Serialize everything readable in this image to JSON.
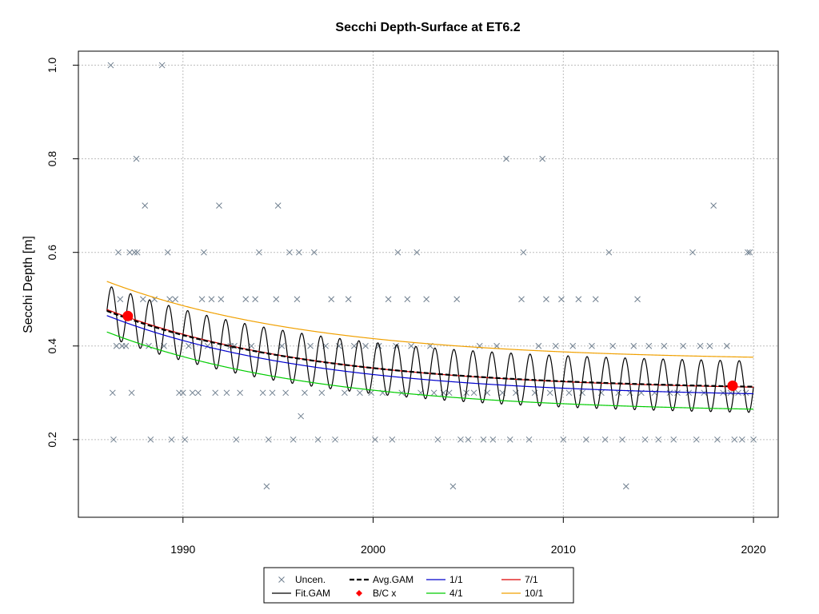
{
  "chart_data": {
    "type": "scatter",
    "title": "Secchi Depth-Surface at ET6.2",
    "xlabel": "",
    "ylabel": "Secchi Depth [m]",
    "xlim": [
      1984.5,
      2021.3
    ],
    "ylim": [
      0.034,
      1.03
    ],
    "x_ticks": [
      1990,
      2000,
      2010,
      2020
    ],
    "y_ticks": [
      0.2,
      0.4,
      0.6,
      0.8,
      1.0
    ],
    "y_tick_labels": [
      "0.2",
      "0.4",
      "0.6",
      "0.8",
      "1.0"
    ],
    "grid": true,
    "legend_position": "bottom",
    "colors": {
      "points": "#6f7f8f",
      "fit_gam": "#000000",
      "avg_gam": "#000000",
      "bc": "#ff0000",
      "s1": "#0000cc",
      "s4": "#00cc00",
      "s7": "#dd0000",
      "s10": "#f0a000",
      "grid": "#bdbdbd"
    },
    "legend": [
      {
        "key": "uncen",
        "label": "Uncen."
      },
      {
        "key": "avg",
        "label": "Avg.GAM"
      },
      {
        "key": "s1",
        "label": "1/1"
      },
      {
        "key": "s7",
        "label": "7/1"
      },
      {
        "key": "fit",
        "label": "Fit.GAM"
      },
      {
        "key": "bc",
        "label": "B/C x"
      },
      {
        "key": "s4",
        "label": "4/1"
      },
      {
        "key": "s10",
        "label": "10/1"
      }
    ],
    "curves": {
      "x_range": [
        1986.0,
        2020.0
      ],
      "avg_gam": {
        "start": 0.475,
        "end": 0.313,
        "decay": 11
      },
      "s1": {
        "start": 0.465,
        "end": 0.298,
        "decay": 11
      },
      "s4": {
        "start": 0.43,
        "end": 0.265,
        "decay": 11
      },
      "s7": {
        "start": 0.478,
        "end": 0.312,
        "decay": 11
      },
      "s10": {
        "start": 0.538,
        "end": 0.376,
        "decay": 11
      },
      "fit_gam_seasonal_amplitude": 0.055
    },
    "bc_points": [
      {
        "x": 1987.1,
        "y": 0.464
      },
      {
        "x": 2018.9,
        "y": 0.315
      }
    ],
    "observations": [
      [
        1986.2,
        1.0
      ],
      [
        1986.3,
        0.3
      ],
      [
        1986.35,
        0.2
      ],
      [
        1986.5,
        0.4
      ],
      [
        1986.6,
        0.6
      ],
      [
        1986.7,
        0.5
      ],
      [
        1986.8,
        0.4
      ],
      [
        1987.0,
        0.4
      ],
      [
        1987.2,
        0.6
      ],
      [
        1987.3,
        0.3
      ],
      [
        1987.45,
        0.6
      ],
      [
        1987.55,
        0.8
      ],
      [
        1987.6,
        0.6
      ],
      [
        1987.9,
        0.5
      ],
      [
        1988.0,
        0.7
      ],
      [
        1988.2,
        0.4
      ],
      [
        1988.3,
        0.2
      ],
      [
        1988.5,
        0.5
      ],
      [
        1988.9,
        1.0
      ],
      [
        1989.0,
        0.4
      ],
      [
        1989.2,
        0.6
      ],
      [
        1989.3,
        0.5
      ],
      [
        1989.4,
        0.2
      ],
      [
        1989.6,
        0.5
      ],
      [
        1989.8,
        0.3
      ],
      [
        1990.0,
        0.3
      ],
      [
        1990.1,
        0.2
      ],
      [
        1990.3,
        0.4
      ],
      [
        1990.5,
        0.3
      ],
      [
        1990.8,
        0.3
      ],
      [
        1991.0,
        0.5
      ],
      [
        1991.1,
        0.6
      ],
      [
        1991.3,
        0.4
      ],
      [
        1991.5,
        0.5
      ],
      [
        1991.7,
        0.3
      ],
      [
        1991.9,
        0.7
      ],
      [
        1992.0,
        0.5
      ],
      [
        1992.3,
        0.3
      ],
      [
        1992.5,
        0.4
      ],
      [
        1992.7,
        0.4
      ],
      [
        1992.8,
        0.2
      ],
      [
        1993.0,
        0.3
      ],
      [
        1993.3,
        0.5
      ],
      [
        1993.6,
        0.4
      ],
      [
        1993.8,
        0.5
      ],
      [
        1994.0,
        0.6
      ],
      [
        1994.2,
        0.3
      ],
      [
        1994.4,
        0.1
      ],
      [
        1994.5,
        0.2
      ],
      [
        1994.7,
        0.3
      ],
      [
        1994.9,
        0.5
      ],
      [
        1995.0,
        0.7
      ],
      [
        1995.2,
        0.4
      ],
      [
        1995.4,
        0.3
      ],
      [
        1995.6,
        0.6
      ],
      [
        1995.8,
        0.2
      ],
      [
        1996.0,
        0.5
      ],
      [
        1996.1,
        0.6
      ],
      [
        1996.2,
        0.25
      ],
      [
        1996.4,
        0.3
      ],
      [
        1996.7,
        0.4
      ],
      [
        1996.9,
        0.6
      ],
      [
        1997.1,
        0.2
      ],
      [
        1997.3,
        0.3
      ],
      [
        1997.5,
        0.4
      ],
      [
        1997.8,
        0.5
      ],
      [
        1998.0,
        0.2
      ],
      [
        1998.2,
        0.4
      ],
      [
        1998.5,
        0.3
      ],
      [
        1998.7,
        0.5
      ],
      [
        1999.0,
        0.4
      ],
      [
        1999.3,
        0.3
      ],
      [
        1999.6,
        0.4
      ],
      [
        1999.9,
        0.3
      ],
      [
        2000.1,
        0.2
      ],
      [
        2000.3,
        0.4
      ],
      [
        2000.5,
        0.3
      ],
      [
        2000.8,
        0.5
      ],
      [
        2001.0,
        0.2
      ],
      [
        2001.2,
        0.4
      ],
      [
        2001.3,
        0.6
      ],
      [
        2001.5,
        0.3
      ],
      [
        2001.8,
        0.5
      ],
      [
        2002.0,
        0.4
      ],
      [
        2002.3,
        0.6
      ],
      [
        2002.5,
        0.3
      ],
      [
        2002.8,
        0.5
      ],
      [
        2003.0,
        0.4
      ],
      [
        2003.2,
        0.3
      ],
      [
        2003.4,
        0.2
      ],
      [
        2003.7,
        0.3
      ],
      [
        2004.0,
        0.3
      ],
      [
        2004.2,
        0.1
      ],
      [
        2004.4,
        0.5
      ],
      [
        2004.6,
        0.2
      ],
      [
        2004.9,
        0.3
      ],
      [
        2005.0,
        0.2
      ],
      [
        2005.3,
        0.3
      ],
      [
        2005.6,
        0.4
      ],
      [
        2005.8,
        0.2
      ],
      [
        2006.0,
        0.3
      ],
      [
        2006.3,
        0.2
      ],
      [
        2006.5,
        0.4
      ],
      [
        2006.8,
        0.3
      ],
      [
        2007.0,
        0.8
      ],
      [
        2007.2,
        0.2
      ],
      [
        2007.5,
        0.3
      ],
      [
        2007.8,
        0.5
      ],
      [
        2007.9,
        0.6
      ],
      [
        2008.2,
        0.2
      ],
      [
        2008.5,
        0.3
      ],
      [
        2008.7,
        0.4
      ],
      [
        2008.9,
        0.8
      ],
      [
        2009.1,
        0.5
      ],
      [
        2009.3,
        0.3
      ],
      [
        2009.6,
        0.4
      ],
      [
        2009.9,
        0.5
      ],
      [
        2010.0,
        0.2
      ],
      [
        2010.3,
        0.3
      ],
      [
        2010.5,
        0.4
      ],
      [
        2010.8,
        0.5
      ],
      [
        2011.0,
        0.3
      ],
      [
        2011.2,
        0.2
      ],
      [
        2011.5,
        0.4
      ],
      [
        2011.7,
        0.5
      ],
      [
        2012.0,
        0.3
      ],
      [
        2012.2,
        0.2
      ],
      [
        2012.4,
        0.6
      ],
      [
        2012.6,
        0.4
      ],
      [
        2012.9,
        0.3
      ],
      [
        2013.1,
        0.2
      ],
      [
        2013.3,
        0.1
      ],
      [
        2013.5,
        0.3
      ],
      [
        2013.7,
        0.4
      ],
      [
        2013.9,
        0.5
      ],
      [
        2014.1,
        0.3
      ],
      [
        2014.3,
        0.2
      ],
      [
        2014.5,
        0.4
      ],
      [
        2014.8,
        0.3
      ],
      [
        2015.0,
        0.2
      ],
      [
        2015.3,
        0.4
      ],
      [
        2015.6,
        0.3
      ],
      [
        2015.8,
        0.2
      ],
      [
        2016.0,
        0.3
      ],
      [
        2016.3,
        0.4
      ],
      [
        2016.6,
        0.3
      ],
      [
        2016.8,
        0.6
      ],
      [
        2017.0,
        0.2
      ],
      [
        2017.2,
        0.4
      ],
      [
        2017.4,
        0.3
      ],
      [
        2017.7,
        0.4
      ],
      [
        2017.9,
        0.7
      ],
      [
        2018.1,
        0.2
      ],
      [
        2018.4,
        0.3
      ],
      [
        2018.6,
        0.4
      ],
      [
        2018.8,
        0.3
      ],
      [
        2019.0,
        0.2
      ],
      [
        2019.2,
        0.3
      ],
      [
        2019.4,
        0.2
      ],
      [
        2019.6,
        0.3
      ],
      [
        2019.7,
        0.6
      ],
      [
        2019.8,
        0.6
      ],
      [
        2020.0,
        0.2
      ]
    ]
  }
}
